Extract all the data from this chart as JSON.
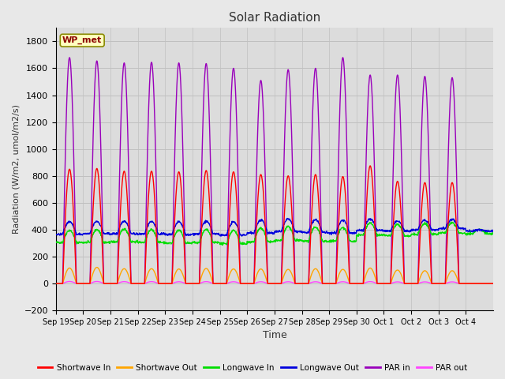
{
  "title": "Solar Radiation",
  "xlabel": "Time",
  "ylabel": "Radiation (W/m2, umol/m2/s)",
  "ylim": [
    -200,
    1900
  ],
  "yticks": [
    -200,
    0,
    200,
    400,
    600,
    800,
    1000,
    1200,
    1400,
    1600,
    1800
  ],
  "x_labels": [
    "Sep 19",
    "Sep 20",
    "Sep 21",
    "Sep 22",
    "Sep 23",
    "Sep 24",
    "Sep 25",
    "Sep 26",
    "Sep 27",
    "Sep 28",
    "Sep 29",
    "Sep 30",
    "Oct 1",
    "Oct 2",
    "Oct 3",
    "Oct 4"
  ],
  "n_days": 16,
  "fig_background": "#e8e8e8",
  "ax_background": "#dcdcdc",
  "station_label": "WP_met",
  "legend": [
    {
      "label": "Shortwave In",
      "color": "#ff0000"
    },
    {
      "label": "Shortwave Out",
      "color": "#ffa500"
    },
    {
      "label": "Longwave In",
      "color": "#00dd00"
    },
    {
      "label": "Longwave Out",
      "color": "#0000dd"
    },
    {
      "label": "PAR in",
      "color": "#9900bb"
    },
    {
      "label": "PAR out",
      "color": "#ff44ff"
    }
  ],
  "sw_in_peaks": [
    850,
    855,
    835,
    835,
    830,
    840,
    830,
    810,
    800,
    810,
    795,
    875,
    760,
    750,
    750,
    0
  ],
  "sw_out_peaks": [
    115,
    120,
    110,
    110,
    108,
    112,
    108,
    108,
    105,
    110,
    105,
    115,
    100,
    95,
    95,
    0
  ],
  "lw_in_base": [
    305,
    305,
    310,
    305,
    300,
    305,
    295,
    310,
    320,
    315,
    315,
    360,
    355,
    365,
    375,
    370
  ],
  "lw_in_peaks": [
    395,
    400,
    405,
    400,
    395,
    400,
    395,
    410,
    425,
    420,
    415,
    450,
    440,
    445,
    450,
    400
  ],
  "lw_out_base": [
    365,
    370,
    370,
    368,
    362,
    368,
    360,
    375,
    385,
    380,
    375,
    395,
    390,
    400,
    410,
    390
  ],
  "lw_out_peaks": [
    460,
    462,
    465,
    462,
    458,
    462,
    458,
    470,
    480,
    475,
    470,
    480,
    465,
    470,
    475,
    400
  ],
  "par_in_peaks": [
    1680,
    1655,
    1640,
    1645,
    1640,
    1635,
    1600,
    1510,
    1590,
    1600,
    1680,
    1550,
    1550,
    1540,
    1530,
    0
  ],
  "par_out_peaks": [
    15,
    15,
    14,
    14,
    13,
    14,
    13,
    13,
    13,
    13,
    13,
    14,
    12,
    12,
    12,
    0
  ]
}
